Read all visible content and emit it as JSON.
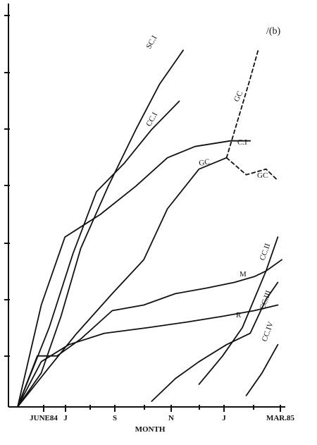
{
  "chart_data": {
    "type": "line",
    "panel_label": "/(b)",
    "xlabel": "MONTH",
    "x_ticks": [
      "JUNE84",
      "J",
      "S",
      "N",
      "J",
      "MAR.85"
    ],
    "x_domain": [
      0,
      9
    ],
    "y_domain": [
      0,
      7
    ],
    "series": [
      {
        "name": "SC.I",
        "label_text": "SC.I",
        "dashed": false,
        "points": [
          [
            0,
            0
          ],
          [
            0.6,
            0.6
          ],
          [
            1.1,
            1.6
          ],
          [
            1.6,
            2.8
          ],
          [
            2.3,
            3.9
          ],
          [
            3,
            4.9
          ],
          [
            3.6,
            5.7
          ],
          [
            4.2,
            6.3
          ]
        ]
      },
      {
        "name": "CC.I",
        "label_text": "CC.I",
        "dashed": false,
        "points": [
          [
            0,
            0
          ],
          [
            0.8,
            1.4
          ],
          [
            1.4,
            2.7
          ],
          [
            2,
            3.8
          ],
          [
            2.7,
            4.3
          ],
          [
            3.4,
            4.9
          ],
          [
            4.1,
            5.4
          ]
        ]
      },
      {
        "name": "C.I",
        "label_text": "C.I",
        "dashed": false,
        "points": [
          [
            0,
            0
          ],
          [
            0.6,
            1.8
          ],
          [
            1.2,
            3.0
          ],
          [
            2.1,
            3.4
          ],
          [
            3,
            3.9
          ],
          [
            3.8,
            4.4
          ],
          [
            4.5,
            4.6
          ],
          [
            5.4,
            4.7
          ],
          [
            5.9,
            4.7
          ]
        ]
      },
      {
        "name": "GC",
        "label_text": "GC",
        "dashed": false,
        "points": [
          [
            0,
            0
          ],
          [
            0.8,
            0.7
          ],
          [
            1.5,
            1.3
          ],
          [
            2.4,
            2.0
          ],
          [
            3.2,
            2.6
          ],
          [
            3.8,
            3.5
          ],
          [
            4.6,
            4.2
          ],
          [
            5.3,
            4.4
          ]
        ]
      },
      {
        "name": "GC (upper)",
        "label_text": "GC",
        "dashed": true,
        "points": [
          [
            5.3,
            4.4
          ],
          [
            5.6,
            5.1
          ],
          [
            5.9,
            5.8
          ],
          [
            6.1,
            6.3
          ]
        ]
      },
      {
        "name": "GC (lower)",
        "label_text": "GC",
        "dashed": true,
        "points": [
          [
            5.3,
            4.4
          ],
          [
            5.8,
            4.1
          ],
          [
            6.3,
            4.2
          ],
          [
            6.6,
            4.0
          ]
        ]
      },
      {
        "name": "M",
        "label_text": "M",
        "dashed": false,
        "points": [
          [
            0,
            0
          ],
          [
            0.5,
            0.9
          ],
          [
            1.0,
            0.9
          ],
          [
            1.6,
            1.2
          ],
          [
            2.4,
            1.7
          ],
          [
            3.2,
            1.8
          ],
          [
            4.0,
            2.0
          ],
          [
            4.8,
            2.1
          ],
          [
            5.5,
            2.2
          ],
          [
            6.0,
            2.3
          ],
          [
            6.3,
            2.4
          ],
          [
            6.7,
            2.6
          ]
        ]
      },
      {
        "name": "R",
        "label_text": "R",
        "dashed": false,
        "points": [
          [
            0,
            0
          ],
          [
            0.6,
            0.8
          ],
          [
            1.3,
            1.1
          ],
          [
            2.2,
            1.3
          ],
          [
            3.3,
            1.4
          ],
          [
            4.3,
            1.5
          ],
          [
            5.2,
            1.6
          ],
          [
            6.0,
            1.7
          ],
          [
            6.6,
            1.8
          ]
        ]
      },
      {
        "name": "CC.II",
        "label_text": "CC.II",
        "dashed": false,
        "points": [
          [
            4.6,
            0.4
          ],
          [
            5.2,
            0.9
          ],
          [
            5.7,
            1.4
          ],
          [
            6.3,
            2.4
          ],
          [
            6.6,
            3.0
          ]
        ]
      },
      {
        "name": "CC.III",
        "label_text": "CC.III",
        "dashed": false,
        "points": [
          [
            3.4,
            0.1
          ],
          [
            4.0,
            0.5
          ],
          [
            4.6,
            0.8
          ],
          [
            5.3,
            1.1
          ],
          [
            5.9,
            1.3
          ],
          [
            6.3,
            1.9
          ],
          [
            6.6,
            2.2
          ]
        ]
      },
      {
        "name": "CC.IV",
        "label_text": "CC.IV",
        "dashed": false,
        "points": [
          [
            5.8,
            0.2
          ],
          [
            6.2,
            0.6
          ],
          [
            6.6,
            1.1
          ]
        ]
      }
    ]
  }
}
